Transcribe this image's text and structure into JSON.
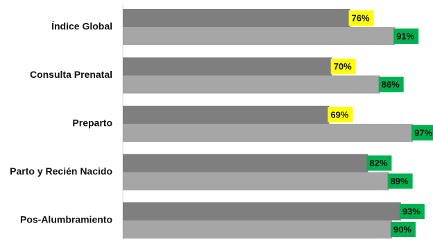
{
  "chart_data": {
    "type": "bar",
    "orientation": "horizontal",
    "categories": [
      "Índice Global",
      "Consulta Prenatal",
      "Preparto",
      "Parto y Recién Nacido",
      "Pos-Alumbramiento"
    ],
    "series": [
      {
        "values": [
          76,
          70,
          69,
          82,
          93
        ],
        "labels": [
          "76%",
          "70%",
          "69%",
          "82%",
          "93%"
        ],
        "color": "#7f7f7f",
        "label_colors": [
          "#ffff00",
          "#ffff00",
          "#ffff00",
          "#00b050",
          "#00b050"
        ]
      },
      {
        "values": [
          91,
          86,
          97,
          89,
          90
        ],
        "labels": [
          "91%",
          "86%",
          "97%",
          "89%",
          "90%"
        ],
        "color": "#a6a6a6",
        "label_colors": [
          "#00b050",
          "#00b050",
          "#00b050",
          "#00b050",
          "#00b050"
        ]
      }
    ],
    "xlim": [
      0,
      100
    ],
    "title": "",
    "xlabel": "",
    "ylabel": "",
    "grid": false,
    "legend": "none"
  }
}
